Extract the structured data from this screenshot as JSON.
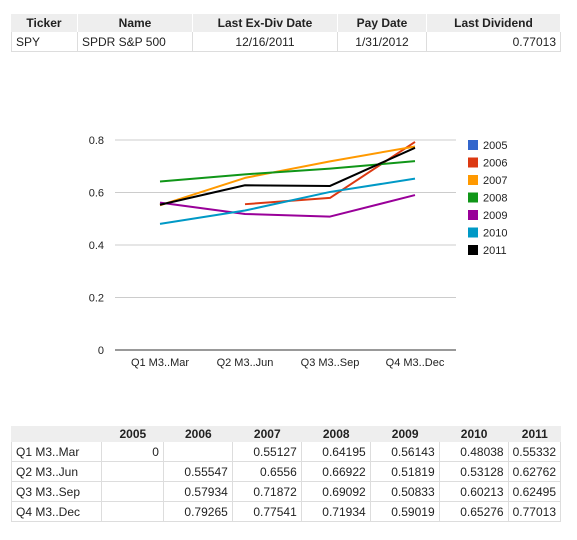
{
  "summary": {
    "headers": [
      "Ticker",
      "Name",
      "Last Ex-Div Date",
      "Pay Date",
      "Last Dividend"
    ],
    "row": {
      "ticker": "SPY",
      "name": "SPDR S&P 500",
      "ex_div_date": "12/16/2011",
      "pay_date": "1/31/2012",
      "last_dividend": "0.77013"
    }
  },
  "chart_data": {
    "type": "line",
    "categories": [
      "Q1 M3..Mar",
      "Q2 M3..Jun",
      "Q3 M3..Sep",
      "Q4 M3..Dec"
    ],
    "ylim": [
      0,
      0.8
    ],
    "yticks": [
      "0",
      "0.2",
      "0.4",
      "0.6",
      "0.8"
    ],
    "grid": true,
    "legend": "right",
    "series": [
      {
        "name": "2005",
        "color": "#3366cc",
        "values": [
          0,
          null,
          null,
          null
        ]
      },
      {
        "name": "2006",
        "color": "#dc3912",
        "values": [
          null,
          0.55547,
          0.57934,
          0.79265
        ]
      },
      {
        "name": "2007",
        "color": "#ff9900",
        "values": [
          0.55127,
          0.6556,
          0.71872,
          0.77541
        ]
      },
      {
        "name": "2008",
        "color": "#109618",
        "values": [
          0.64195,
          0.66922,
          0.69092,
          0.71934
        ]
      },
      {
        "name": "2009",
        "color": "#990099",
        "values": [
          0.56143,
          0.51819,
          0.50833,
          0.59019
        ]
      },
      {
        "name": "2010",
        "color": "#0099c6",
        "values": [
          0.48038,
          0.53128,
          0.60213,
          0.65276
        ]
      },
      {
        "name": "2011",
        "color": "#000000",
        "values": [
          0.55332,
          0.62762,
          0.62495,
          0.77013
        ]
      }
    ]
  },
  "data_table": {
    "columns": [
      "",
      "2005",
      "2006",
      "2007",
      "2008",
      "2009",
      "2010",
      "2011"
    ],
    "rows": [
      [
        "Q1 M3..Mar",
        "0",
        "",
        "0.55127",
        "0.64195",
        "0.56143",
        "0.48038",
        "0.55332"
      ],
      [
        "Q2 M3..Jun",
        "",
        "0.55547",
        "0.6556",
        "0.66922",
        "0.51819",
        "0.53128",
        "0.62762"
      ],
      [
        "Q3 M3..Sep",
        "",
        "0.57934",
        "0.71872",
        "0.69092",
        "0.50833",
        "0.60213",
        "0.62495"
      ],
      [
        "Q4 M3..Dec",
        "",
        "0.79265",
        "0.77541",
        "0.71934",
        "0.59019",
        "0.65276",
        "0.77013"
      ]
    ]
  }
}
